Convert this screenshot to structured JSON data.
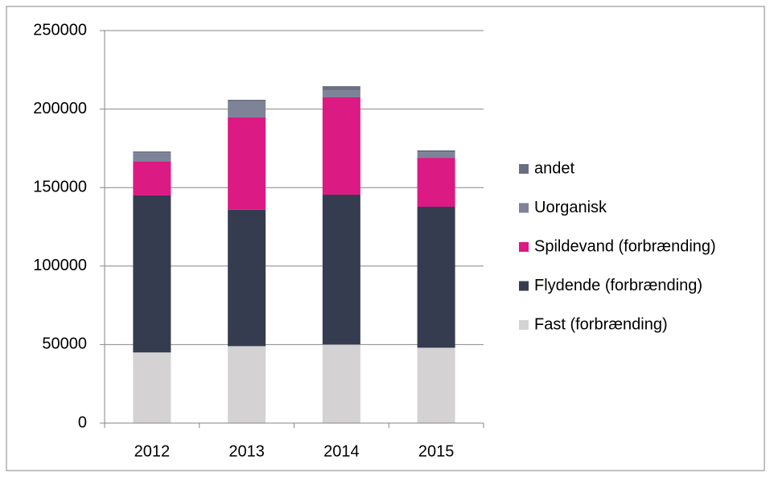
{
  "chart_data": {
    "type": "stacked_bar",
    "categories": [
      "2012",
      "2013",
      "2014",
      "2015"
    ],
    "series": [
      {
        "name": "Fast (forbrænding)",
        "color": "#d4d2d2",
        "values": [
          45000,
          49000,
          50000,
          48000
        ]
      },
      {
        "name": "Flydende (forbrænding)",
        "color": "#363c50",
        "values": [
          100000,
          86800,
          95500,
          89800
        ]
      },
      {
        "name": "Spildevand (forbrænding)",
        "color": "#dc1a83",
        "values": [
          21500,
          58900,
          62000,
          31200
        ]
      },
      {
        "name": "Uorganisk",
        "color": "#7e8398",
        "values": [
          5500,
          10200,
          4600,
          3600
        ]
      },
      {
        "name": "andet",
        "color": "#6b6f82",
        "values": [
          1000,
          1000,
          2500,
          1100
        ]
      }
    ],
    "ylim": [
      0,
      250000
    ],
    "yticks": [
      0,
      50000,
      100000,
      150000,
      200000,
      250000
    ],
    "grid": true,
    "legend": "right"
  }
}
